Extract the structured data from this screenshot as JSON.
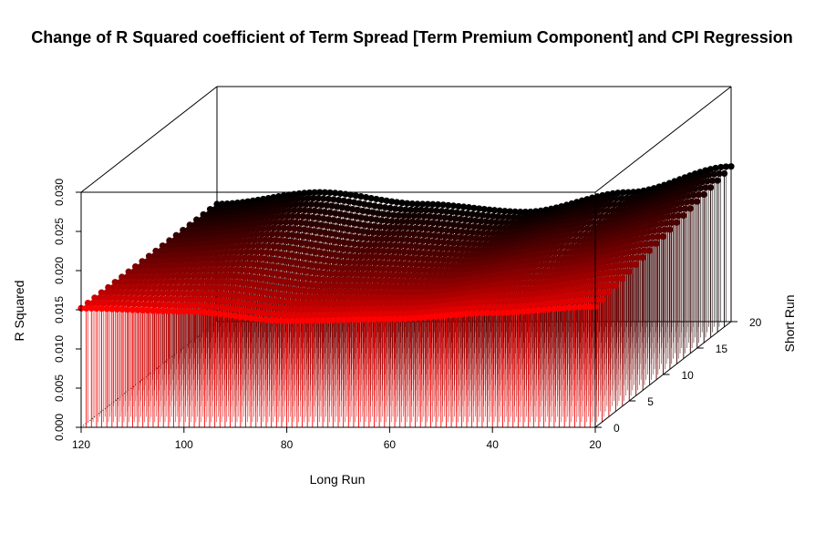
{
  "chart_data": {
    "type": "scatter",
    "subtype": "3d-scatter-with-drop-lines",
    "title": "Change of R Squared coefficient of Term Spread [Term Premium Component] and CPI Regression",
    "xlabel": "Long Run",
    "ylabel": "Short Run",
    "zlabel": "R Squared",
    "x_ticks": [
      "120",
      "100",
      "80",
      "60",
      "40",
      "20"
    ],
    "y_ticks": [
      "0",
      "5",
      "10",
      "15",
      "20"
    ],
    "z_ticks": [
      "0.000",
      "0.005",
      "0.010",
      "0.015",
      "0.020",
      "0.025",
      "0.030"
    ],
    "xlim": [
      20,
      120
    ],
    "ylim": [
      0,
      20
    ],
    "zlim": [
      0,
      0.03
    ],
    "x_range": [
      20,
      120
    ],
    "y_range": [
      0,
      20
    ],
    "color_gradient": {
      "near": "#ff0000",
      "far": "#000000"
    },
    "surface_profile": {
      "description_short_run_0": [
        {
          "x": 120,
          "z": 0.0152
        },
        {
          "x": 100,
          "z": 0.0148
        },
        {
          "x": 80,
          "z": 0.0136
        },
        {
          "x": 60,
          "z": 0.0138
        },
        {
          "x": 40,
          "z": 0.0146
        },
        {
          "x": 20,
          "z": 0.0154
        }
      ],
      "description_short_run_20": [
        {
          "x": 120,
          "z": 0.015
        },
        {
          "x": 100,
          "z": 0.0165
        },
        {
          "x": 80,
          "z": 0.015
        },
        {
          "x": 60,
          "z": 0.014
        },
        {
          "x": 40,
          "z": 0.0165
        },
        {
          "x": 20,
          "z": 0.0198
        }
      ]
    }
  }
}
